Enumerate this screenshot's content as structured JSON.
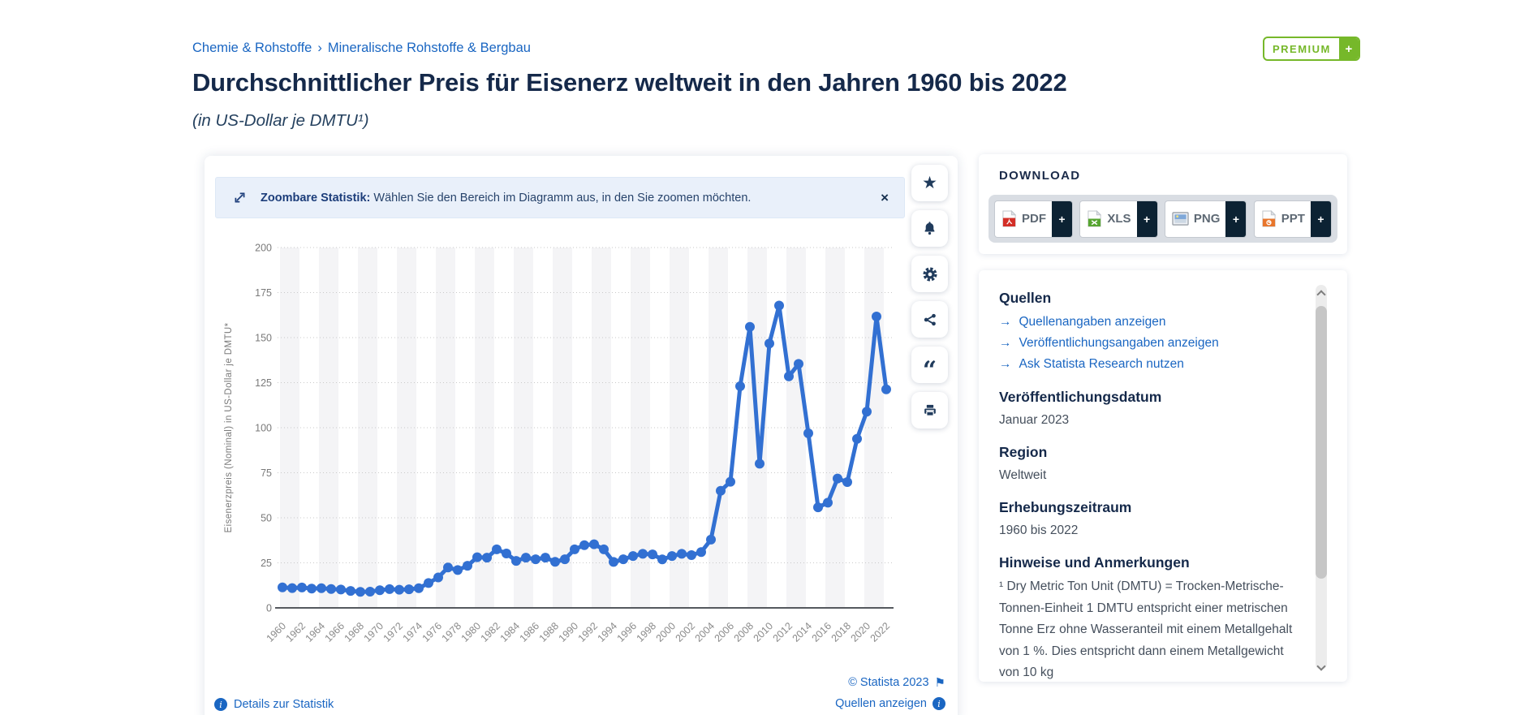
{
  "colors": {
    "accent_blue": "#1a66c2",
    "navy": "#15294a",
    "line_blue": "#3270d2",
    "premium_green": "#76b82a",
    "band_gray": "#f4f4f6"
  },
  "glyphs": {
    "breadcrumb_sep": "›",
    "close": "×",
    "plus": "+",
    "arrow": "→",
    "star": "★",
    "quote": "“",
    "flag": "⚑",
    "info": "i"
  },
  "breadcrumb": {
    "items": [
      "Chemie & Rohstoffe",
      "Mineralische Rohstoffe & Bergbau"
    ]
  },
  "header": {
    "title": "Durchschnittlicher Preis für Eisenerz weltweit in den Jahren 1960 bis 2022",
    "subtitle": "(in US-Dollar je DMTU¹)",
    "premium_label": "PREMIUM"
  },
  "banner": {
    "bold": "Zoombare Statistik:",
    "text": "Wählen Sie den Bereich im Diagramm aus, in den Sie zoomen möchten."
  },
  "download": {
    "heading": "DOWNLOAD",
    "buttons": [
      {
        "label": "PDF",
        "icon": "pdf-file-icon"
      },
      {
        "label": "XLS",
        "icon": "xls-file-icon"
      },
      {
        "label": "PNG",
        "icon": "png-image-icon"
      },
      {
        "label": "PPT",
        "icon": "ppt-file-icon"
      }
    ]
  },
  "tools": {
    "icons": [
      "star-icon",
      "bell-icon",
      "gear-icon",
      "share-icon",
      "quote-icon",
      "print-icon"
    ]
  },
  "panel": {
    "quellen_heading": "Quellen",
    "links": [
      "Quellenangaben anzeigen",
      "Veröffentlichungsangaben anzeigen",
      "Ask Statista Research nutzen"
    ],
    "pub_heading": "Veröffentlichungsdatum",
    "pub_value": "Januar 2023",
    "region_heading": "Region",
    "region_value": "Weltweit",
    "period_heading": "Erhebungszeitraum",
    "period_value": "1960 bis 2022",
    "notes_heading": "Hinweise und Anmerkungen",
    "notes_text": "¹ Dry Metric Ton Unit (DMTU) = Trocken-Metrische-Tonnen-Einheit 1 DMTU entspricht einer metrischen Tonne Erz ohne Wasseranteil mit einem Metallgehalt von 1 %. Dies entspricht dann einem Metallgewicht von 10 kg"
  },
  "footer": {
    "details_link": "Details zur Statistik",
    "copyright": "© Statista 2023",
    "sources_link": "Quellen anzeigen"
  },
  "chart_data": {
    "type": "line",
    "title": "Durchschnittlicher Preis für Eisenerz weltweit in den Jahren 1960 bis 2022",
    "xlabel": "",
    "ylabel": "Eisenerzpreis (Nominal) in US-Dollar je DMTU*",
    "ylim": [
      0,
      200
    ],
    "yticks": [
      0,
      25,
      50,
      75,
      100,
      125,
      150,
      175,
      200
    ],
    "xtick_step": 2,
    "grid": "dotted-horizontal",
    "legend": "none",
    "line_color": "#3270d2",
    "markers": true,
    "x": [
      1960,
      1961,
      1962,
      1963,
      1964,
      1965,
      1966,
      1967,
      1968,
      1969,
      1970,
      1971,
      1972,
      1973,
      1974,
      1975,
      1976,
      1977,
      1978,
      1979,
      1980,
      1981,
      1982,
      1983,
      1984,
      1985,
      1986,
      1987,
      1988,
      1989,
      1990,
      1991,
      1992,
      1993,
      1994,
      1995,
      1996,
      1997,
      1998,
      1999,
      2000,
      2001,
      2002,
      2003,
      2004,
      2005,
      2006,
      2007,
      2008,
      2009,
      2010,
      2011,
      2012,
      2013,
      2014,
      2015,
      2016,
      2017,
      2018,
      2019,
      2020,
      2021,
      2022
    ],
    "values": [
      11.4,
      11.0,
      11.3,
      10.7,
      10.9,
      10.5,
      10.2,
      9.4,
      8.9,
      9.0,
      9.8,
      10.4,
      10.1,
      10.3,
      10.9,
      13.8,
      16.9,
      22.4,
      21.0,
      23.4,
      28.1,
      27.9,
      32.5,
      30.2,
      26.1,
      27.9,
      27.0,
      27.9,
      25.6,
      27.0,
      32.5,
      34.8,
      35.3,
      32.5,
      25.5,
      27.0,
      28.8,
      30.0,
      29.7,
      26.9,
      28.8,
      30.0,
      29.3,
      31.0,
      37.9,
      65.0,
      70.0,
      123.0,
      156.0,
      80.0,
      146.7,
      167.8,
      128.5,
      135.4,
      96.9,
      55.8,
      58.4,
      71.8,
      69.8,
      93.8,
      108.9,
      161.7,
      121.3
    ]
  }
}
